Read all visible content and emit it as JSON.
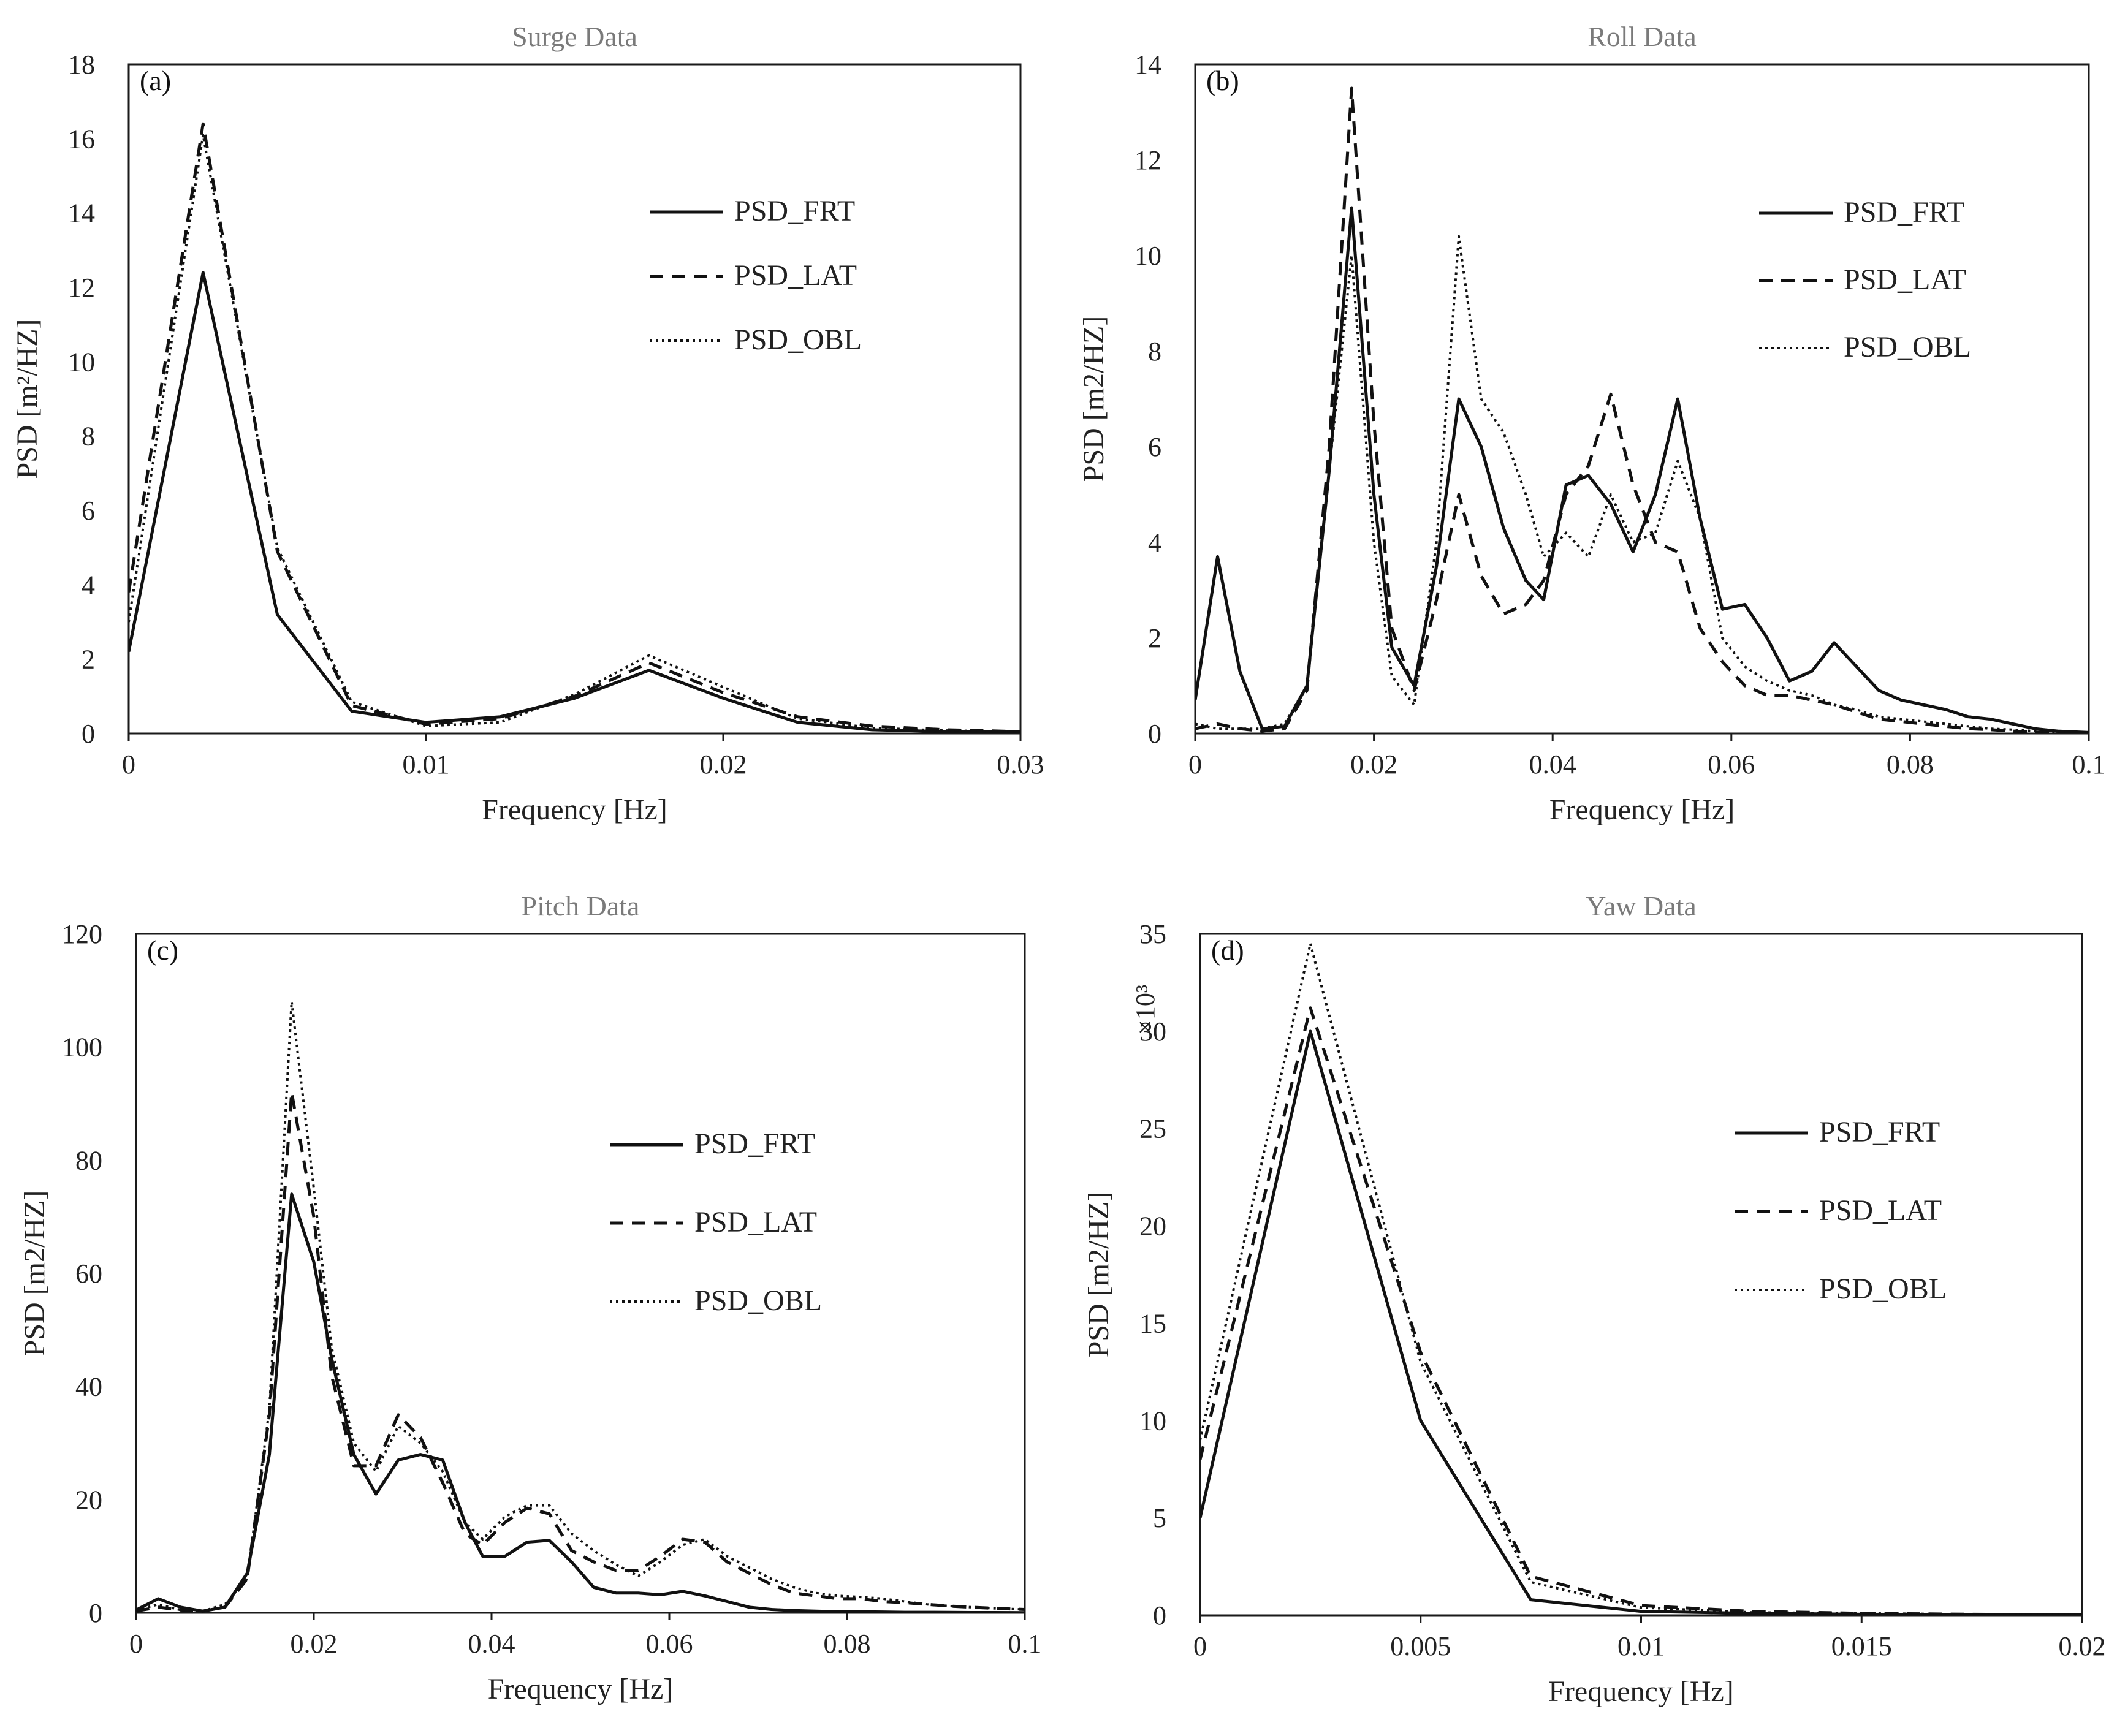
{
  "chart_data": [
    {
      "panel_label": "(a)",
      "title": "Surge Data",
      "type": "line",
      "xlabel": "Frequency [Hz]",
      "ylabel": "PSD [m²/HZ]",
      "xlim": [
        0,
        0.03
      ],
      "ylim": [
        0,
        18
      ],
      "xticks": [
        0,
        0.01,
        0.02,
        0.03
      ],
      "xtick_labels": [
        "0",
        "0.01",
        "0.02",
        "0.03"
      ],
      "yticks": [
        0,
        2,
        4,
        6,
        8,
        10,
        12,
        14,
        16,
        18
      ],
      "ytick_labels": [
        "0",
        "2",
        "4",
        "6",
        "8",
        "10",
        "12",
        "14",
        "16",
        "18"
      ],
      "multiplier": "",
      "legend_position": "upper-right",
      "x": [
        0,
        0.0025,
        0.005,
        0.0075,
        0.01,
        0.0125,
        0.015,
        0.0175,
        0.02,
        0.0225,
        0.025,
        0.0275,
        0.03
      ],
      "series": [
        {
          "name": "PSD_FRT",
          "style": "solid",
          "values": [
            2.2,
            12.4,
            3.2,
            0.6,
            0.3,
            0.45,
            0.95,
            1.7,
            0.95,
            0.3,
            0.1,
            0.05,
            0.05
          ]
        },
        {
          "name": "PSD_LAT",
          "style": "dashed",
          "values": [
            3.8,
            16.4,
            4.9,
            0.75,
            0.25,
            0.4,
            1.0,
            1.9,
            1.1,
            0.45,
            0.2,
            0.1,
            0.05
          ]
        },
        {
          "name": "PSD_OBL",
          "style": "dotted",
          "values": [
            3.0,
            16.1,
            5.0,
            0.85,
            0.2,
            0.3,
            1.05,
            2.1,
            1.25,
            0.4,
            0.15,
            0.08,
            0.05
          ]
        }
      ]
    },
    {
      "panel_label": "(b)",
      "title": "Roll Data",
      "type": "line",
      "xlabel": "Frequency [Hz]",
      "ylabel": "PSD [m2/HZ]",
      "xlim": [
        0,
        0.1
      ],
      "ylim": [
        0,
        14
      ],
      "xticks": [
        0,
        0.02,
        0.04,
        0.06,
        0.08,
        0.1
      ],
      "xtick_labels": [
        "0",
        "0.02",
        "0.04",
        "0.06",
        "0.08",
        "0.1"
      ],
      "yticks": [
        0,
        2,
        4,
        6,
        8,
        10,
        12,
        14
      ],
      "ytick_labels": [
        "0",
        "2",
        "4",
        "6",
        "8",
        "10",
        "12",
        "14"
      ],
      "multiplier": "",
      "legend_position": "upper-right",
      "x": [
        0,
        0.0025,
        0.005,
        0.0075,
        0.01,
        0.0125,
        0.015,
        0.0175,
        0.02,
        0.022,
        0.0245,
        0.027,
        0.0295,
        0.032,
        0.0345,
        0.037,
        0.039,
        0.0415,
        0.044,
        0.0465,
        0.049,
        0.0515,
        0.054,
        0.0565,
        0.059,
        0.0615,
        0.064,
        0.0665,
        0.069,
        0.0715,
        0.074,
        0.0765,
        0.079,
        0.0815,
        0.084,
        0.0865,
        0.089,
        0.0915,
        0.094,
        0.0965,
        0.1
      ],
      "series": [
        {
          "name": "PSD_FRT",
          "style": "solid",
          "values": [
            0.7,
            3.7,
            1.3,
            0.1,
            0.15,
            1.0,
            5.5,
            11.0,
            5.0,
            1.8,
            1.0,
            3.5,
            7.0,
            6.0,
            4.3,
            3.2,
            2.8,
            5.2,
            5.4,
            4.8,
            3.8,
            5.0,
            7.0,
            4.5,
            2.6,
            2.7,
            2.0,
            1.1,
            1.3,
            1.9,
            1.4,
            0.9,
            0.7,
            0.6,
            0.5,
            0.35,
            0.3,
            0.2,
            0.1,
            0.05,
            0.02
          ]
        },
        {
          "name": "PSD_LAT",
          "style": "dashed",
          "values": [
            0.1,
            0.2,
            0.1,
            0.05,
            0.1,
            0.9,
            6.0,
            13.5,
            6.5,
            2.2,
            0.9,
            2.8,
            5.0,
            3.3,
            2.5,
            2.7,
            3.2,
            5.0,
            5.6,
            7.1,
            5.2,
            4.0,
            3.8,
            2.2,
            1.5,
            1.0,
            0.8,
            0.8,
            0.7,
            0.6,
            0.45,
            0.3,
            0.25,
            0.2,
            0.15,
            0.1,
            0.08,
            0.05,
            0.03,
            0.02,
            0.01
          ]
        },
        {
          "name": "PSD_OBL",
          "style": "dotted",
          "values": [
            0.2,
            0.1,
            0.1,
            0.1,
            0.2,
            1.0,
            5.5,
            10.0,
            4.0,
            1.2,
            0.6,
            4.0,
            10.4,
            7.0,
            6.3,
            5.0,
            3.7,
            4.2,
            3.7,
            5.0,
            4.0,
            4.2,
            5.7,
            4.5,
            2.0,
            1.4,
            1.1,
            0.9,
            0.8,
            0.6,
            0.5,
            0.35,
            0.3,
            0.25,
            0.2,
            0.15,
            0.1,
            0.08,
            0.05,
            0.03,
            0.02
          ]
        }
      ]
    },
    {
      "panel_label": "(c)",
      "title": "Pitch Data",
      "type": "line",
      "xlabel": "Frequency [Hz]",
      "ylabel": "PSD [m2/HZ]",
      "xlim": [
        0,
        0.1
      ],
      "ylim": [
        0,
        120
      ],
      "xticks": [
        0,
        0.02,
        0.04,
        0.06,
        0.08,
        0.1
      ],
      "xtick_labels": [
        "0",
        "0.02",
        "0.04",
        "0.06",
        "0.08",
        "0.1"
      ],
      "yticks": [
        0,
        20,
        40,
        60,
        80,
        100,
        120
      ],
      "ytick_labels": [
        "0",
        "20",
        "40",
        "60",
        "80",
        "100",
        "120"
      ],
      "multiplier": "",
      "legend_position": "right",
      "x": [
        0,
        0.0025,
        0.005,
        0.0075,
        0.01,
        0.0125,
        0.015,
        0.0175,
        0.02,
        0.022,
        0.0245,
        0.027,
        0.0295,
        0.032,
        0.0345,
        0.037,
        0.039,
        0.0415,
        0.044,
        0.0465,
        0.049,
        0.0515,
        0.054,
        0.0565,
        0.059,
        0.0615,
        0.064,
        0.0665,
        0.069,
        0.0715,
        0.074,
        0.0765,
        0.079,
        0.0815,
        0.084,
        0.0865,
        0.089,
        0.0915,
        0.094,
        0.0965,
        0.1
      ],
      "series": [
        {
          "name": "PSD_FRT",
          "style": "solid",
          "values": [
            0.5,
            2.5,
            1.0,
            0.3,
            1.0,
            7.0,
            28.0,
            74.0,
            62.0,
            45.0,
            28.0,
            21.0,
            27.0,
            28.0,
            27.0,
            16.0,
            10.0,
            10.0,
            12.5,
            12.8,
            9.0,
            4.5,
            3.5,
            3.5,
            3.2,
            3.8,
            3.0,
            2.0,
            1.0,
            0.6,
            0.4,
            0.3,
            0.2,
            0.2,
            0.15,
            0.1,
            0.1,
            0.08,
            0.05,
            0.05,
            0.03
          ]
        },
        {
          "name": "PSD_LAT",
          "style": "dashed",
          "values": [
            0.3,
            1.0,
            0.5,
            0.3,
            1.0,
            6.0,
            35.0,
            92.0,
            70.0,
            42.0,
            26.0,
            26.0,
            35.0,
            31.0,
            23.0,
            14.0,
            12.0,
            16.0,
            18.5,
            17.5,
            11.0,
            9.0,
            7.5,
            7.5,
            10.0,
            13.0,
            12.5,
            9.0,
            7.0,
            5.0,
            3.5,
            3.0,
            2.5,
            2.5,
            2.0,
            1.8,
            1.5,
            1.2,
            1.0,
            0.8,
            0.6
          ]
        },
        {
          "name": "PSD_OBL",
          "style": "dotted",
          "values": [
            0.5,
            1.5,
            0.5,
            0.3,
            1.5,
            6.0,
            36.0,
            108.0,
            75.0,
            47.0,
            30.0,
            25.0,
            33.0,
            30.0,
            25.0,
            16.0,
            13.0,
            17.0,
            19.0,
            19.0,
            14.0,
            11.0,
            8.5,
            6.5,
            9.0,
            12.0,
            13.0,
            10.0,
            8.0,
            6.0,
            4.5,
            3.5,
            3.0,
            2.8,
            2.5,
            2.0,
            1.5,
            1.2,
            1.0,
            0.8,
            0.6
          ]
        }
      ]
    },
    {
      "panel_label": "(d)",
      "title": "Yaw Data",
      "type": "line",
      "xlabel": "Frequency [Hz]",
      "ylabel": "PSD [m2/HZ]",
      "xlim": [
        0,
        0.02
      ],
      "ylim": [
        0,
        35
      ],
      "xticks": [
        0,
        0.005,
        0.01,
        0.015,
        0.02
      ],
      "xtick_labels": [
        "0",
        "0.005",
        "0.01",
        "0.015",
        "0.02"
      ],
      "yticks": [
        0,
        5,
        10,
        15,
        20,
        25,
        30,
        35
      ],
      "ytick_labels": [
        "0",
        "5",
        "10",
        "15",
        "20",
        "25",
        "30",
        "35"
      ],
      "multiplier": "×10³",
      "legend_position": "right",
      "x": [
        0,
        0.0025,
        0.005,
        0.0075,
        0.01,
        0.0125,
        0.015,
        0.0175,
        0.02
      ],
      "series": [
        {
          "name": "PSD_FRT",
          "style": "solid",
          "values": [
            5.0,
            30.0,
            10.0,
            0.8,
            0.2,
            0.1,
            0.05,
            0.03,
            0.02
          ]
        },
        {
          "name": "PSD_LAT",
          "style": "dashed",
          "values": [
            8.0,
            31.2,
            13.5,
            2.0,
            0.5,
            0.2,
            0.1,
            0.05,
            0.03
          ]
        },
        {
          "name": "PSD_OBL",
          "style": "dotted",
          "values": [
            9.0,
            34.5,
            13.0,
            1.7,
            0.4,
            0.15,
            0.1,
            0.05,
            0.03
          ]
        }
      ]
    }
  ]
}
